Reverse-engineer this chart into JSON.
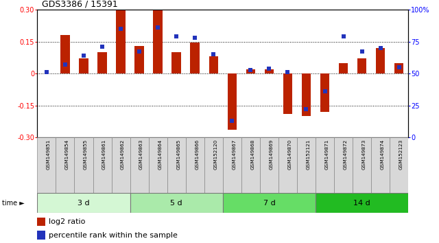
{
  "title": "GDS3386 / 15391",
  "samples": [
    "GSM149851",
    "GSM149854",
    "GSM149855",
    "GSM149861",
    "GSM149862",
    "GSM149863",
    "GSM149864",
    "GSM149865",
    "GSM149866",
    "GSM152120",
    "GSM149867",
    "GSM149868",
    "GSM149869",
    "GSM149870",
    "GSM152121",
    "GSM149871",
    "GSM149872",
    "GSM149873",
    "GSM149874",
    "GSM152123"
  ],
  "log2_ratio": [
    0.0,
    0.18,
    0.07,
    0.1,
    0.3,
    0.13,
    0.3,
    0.1,
    0.145,
    0.08,
    -0.265,
    0.02,
    0.02,
    -0.19,
    -0.2,
    -0.18,
    0.05,
    0.07,
    0.12,
    0.05
  ],
  "percentile": [
    51,
    57,
    64,
    71,
    85,
    67,
    86,
    79,
    78,
    65,
    13,
    53,
    54,
    51,
    22,
    36,
    79,
    67,
    70,
    55
  ],
  "groups": [
    {
      "label": "3 d",
      "start": 0,
      "end": 5,
      "color": "#d4f7d4"
    },
    {
      "label": "5 d",
      "start": 5,
      "end": 10,
      "color": "#aaeaaa"
    },
    {
      "label": "7 d",
      "start": 10,
      "end": 15,
      "color": "#66dd66"
    },
    {
      "label": "14 d",
      "start": 15,
      "end": 20,
      "color": "#22bb22"
    }
  ],
  "bar_color_red": "#bb2200",
  "bar_color_blue": "#2233bb",
  "ylim": [
    -0.3,
    0.3
  ],
  "y2lim": [
    0,
    100
  ],
  "yticks_left": [
    -0.3,
    -0.15,
    0.0,
    0.15,
    0.3
  ],
  "yticks_right": [
    0,
    25,
    50,
    75,
    100
  ],
  "hlines": [
    -0.15,
    0.0,
    0.15
  ],
  "bg": "#ffffff",
  "sample_box_color": "#d8d8d8",
  "time_label": "time ►",
  "legend_red": "log2 ratio",
  "legend_blue": "percentile rank within the sample"
}
